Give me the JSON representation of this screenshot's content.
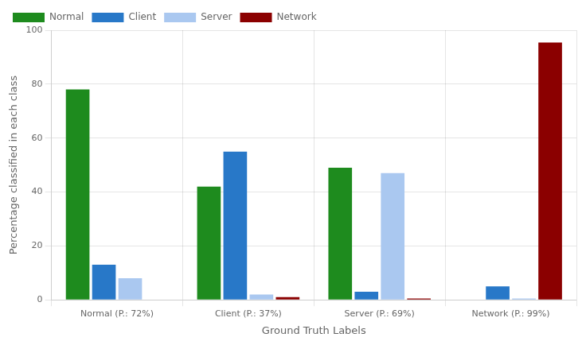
{
  "chart_data": {
    "type": "bar",
    "categories": [
      "Normal (P.: 72%)",
      "Client (P.: 37%)",
      "Server (P.: 69%)",
      "Network (P.: 99%)"
    ],
    "series": [
      {
        "name": "Normal",
        "color": "#1e8b1e",
        "values": [
          78,
          42,
          49,
          0
        ]
      },
      {
        "name": "Client",
        "color": "#2878c8",
        "values": [
          13,
          55,
          3,
          5
        ]
      },
      {
        "name": "Server",
        "color": "#aac8f0",
        "values": [
          8,
          2,
          47,
          0.5
        ]
      },
      {
        "name": "Network",
        "color": "#8b0000",
        "values": [
          0,
          1,
          0.5,
          95.4
        ]
      }
    ],
    "xlabel": "Ground Truth Labels",
    "ylabel": "Percentage classified in each class",
    "ylim": [
      0,
      100
    ],
    "yticks": [
      0,
      20,
      40,
      60,
      80,
      100
    ],
    "grid": true,
    "legend": "upper left"
  }
}
